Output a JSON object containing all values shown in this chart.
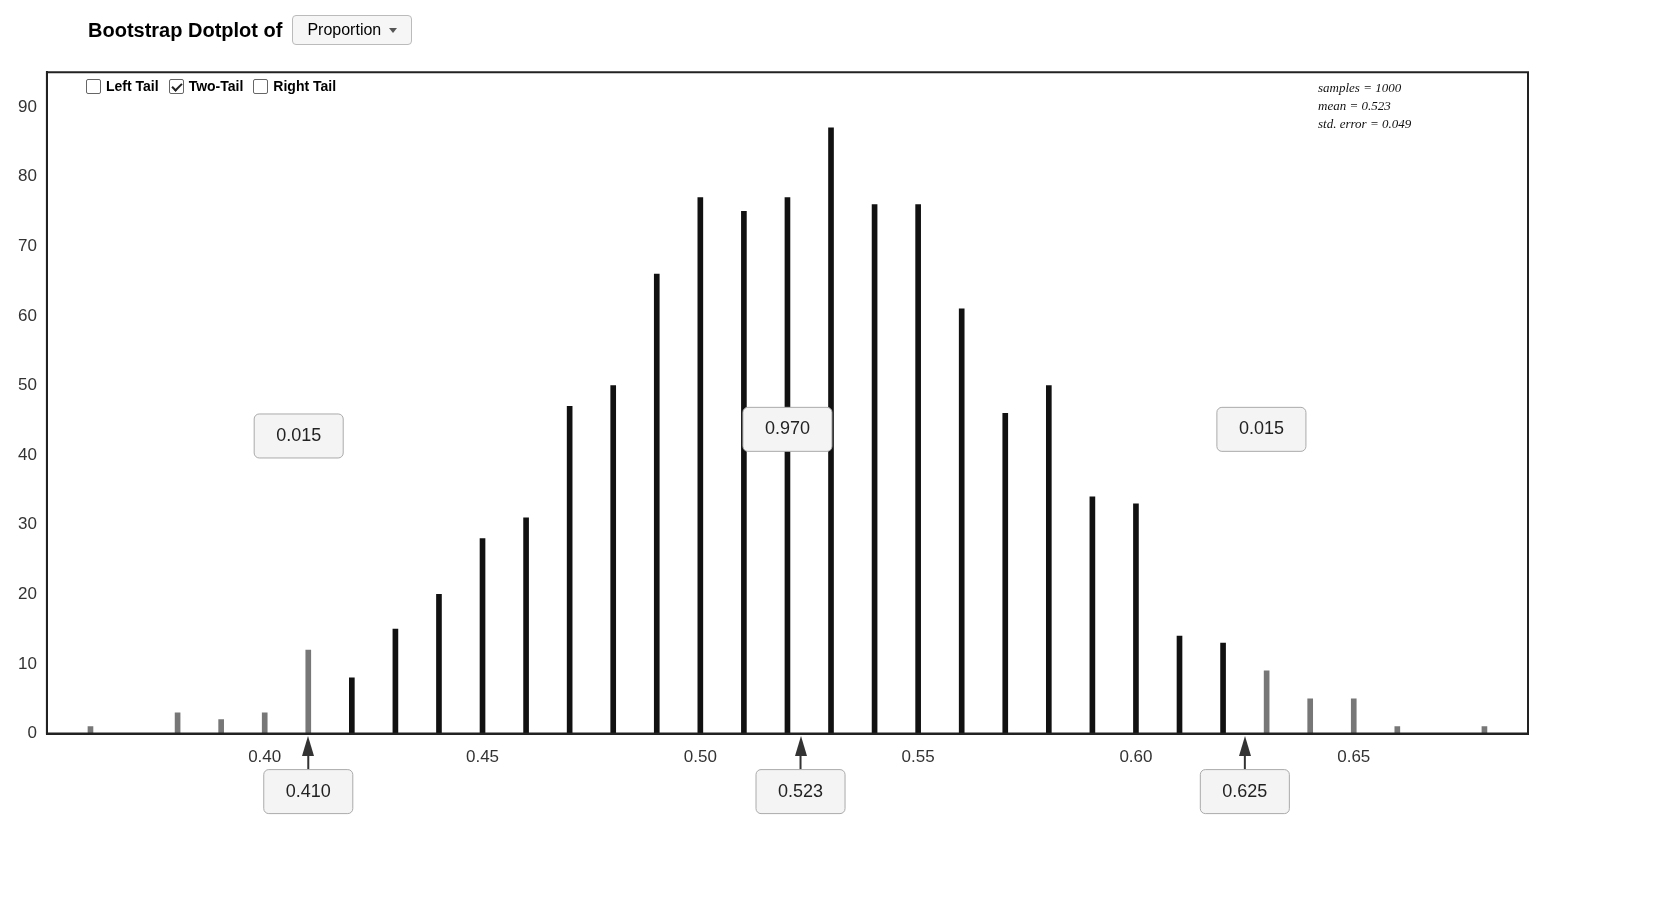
{
  "chart_data": {
    "type": "bar",
    "title": "Bootstrap Dotplot of",
    "xlabel": "Proportion",
    "x": [
      0.36,
      0.38,
      0.39,
      0.4,
      0.41,
      0.42,
      0.43,
      0.44,
      0.45,
      0.46,
      0.47,
      0.48,
      0.49,
      0.5,
      0.51,
      0.52,
      0.53,
      0.54,
      0.55,
      0.56,
      0.57,
      0.58,
      0.59,
      0.6,
      0.61,
      0.62,
      0.63,
      0.64,
      0.65,
      0.66,
      0.68
    ],
    "values": [
      1,
      3,
      2,
      3,
      12,
      8,
      15,
      20,
      28,
      31,
      47,
      50,
      66,
      77,
      75,
      77,
      87,
      76,
      76,
      61,
      46,
      50,
      34,
      33,
      14,
      13,
      9,
      5,
      5,
      1,
      1
    ],
    "colors": [
      "#777777",
      "#777777",
      "#777777",
      "#777777",
      "#777777",
      "#111111",
      "#111111",
      "#111111",
      "#111111",
      "#111111",
      "#111111",
      "#111111",
      "#111111",
      "#111111",
      "#111111",
      "#111111",
      "#111111",
      "#111111",
      "#111111",
      "#111111",
      "#111111",
      "#111111",
      "#111111",
      "#111111",
      "#111111",
      "#111111",
      "#777777",
      "#777777",
      "#777777",
      "#777777",
      "#777777"
    ],
    "xlim": [
      0.35,
      0.69
    ],
    "xticks": [
      {
        "value": 0.4,
        "label": "0.40"
      },
      {
        "value": 0.45,
        "label": "0.45"
      },
      {
        "value": 0.5,
        "label": "0.50"
      },
      {
        "value": 0.55,
        "label": "0.55"
      },
      {
        "value": 0.6,
        "label": "0.60"
      },
      {
        "value": 0.65,
        "label": "0.65"
      }
    ],
    "ylim": [
      0,
      95
    ],
    "yticks": [
      0,
      10,
      20,
      30,
      40,
      50,
      60,
      70,
      80,
      90
    ],
    "grid": false,
    "legend": false,
    "annotations": [
      "Left Tail",
      "Two-Tail",
      "Right Tail",
      "samples = 1000",
      "mean = 0.523",
      "std. error = 0.049",
      "0.015",
      "0.970",
      "0.015"
    ],
    "ref_lines": [
      {
        "axis": "x",
        "value": 0.41,
        "label": "0.410"
      },
      {
        "axis": "x",
        "value": 0.523,
        "label": "0.523"
      },
      {
        "axis": "x",
        "value": 0.625,
        "label": "0.625"
      }
    ]
  }
}
